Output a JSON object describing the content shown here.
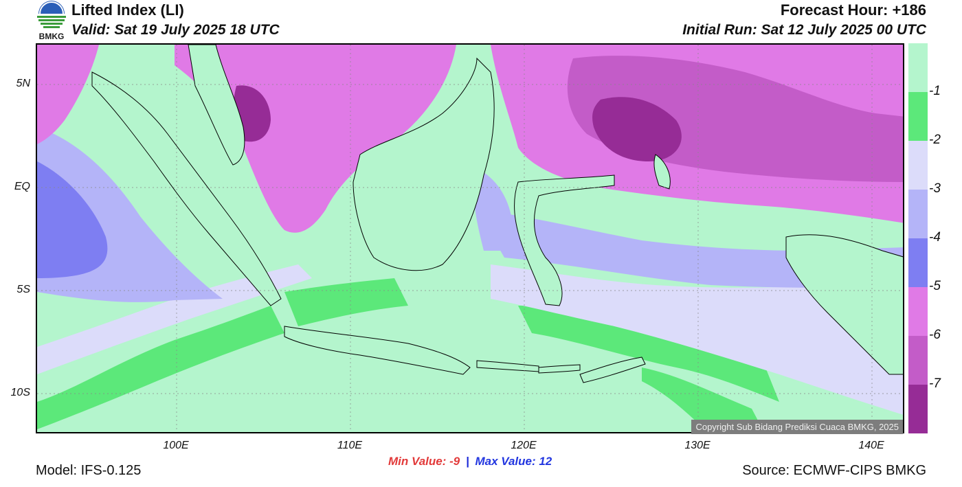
{
  "header": {
    "title": "Lifted Index (LI)",
    "valid": "Valid: Sat 19 July 2025 18 UTC",
    "forecast_hour": "Forecast Hour: +186",
    "initial_run": "Initial Run: Sat 12 July 2025 00 UTC"
  },
  "logo": {
    "text": "BMKG"
  },
  "axes": {
    "lat_labels": [
      "5N",
      "EQ",
      "5S",
      "10S"
    ],
    "lon_labels": [
      "100E",
      "110E",
      "120E",
      "130E",
      "140E"
    ]
  },
  "colorbar": {
    "labels": [
      "-1",
      "-2",
      "-3",
      "-4",
      "-5",
      "-6",
      "-7"
    ],
    "colors": [
      "#b4f5cd",
      "#5ce87a",
      "#dcdcfa",
      "#b4b4f8",
      "#7e7ef2",
      "#e07ae6",
      "#c35cc8",
      "#962c96"
    ]
  },
  "footer": {
    "min_label": "Min Value:  -9",
    "separator": "|",
    "max_label": "Max Value:  12",
    "model": "Model: IFS-0.125",
    "source": "Source: ECMWF-CIPS BMKG",
    "copyright": "Copyright Sub Bidang Prediksi Cuaca BMKG, 2025"
  }
}
